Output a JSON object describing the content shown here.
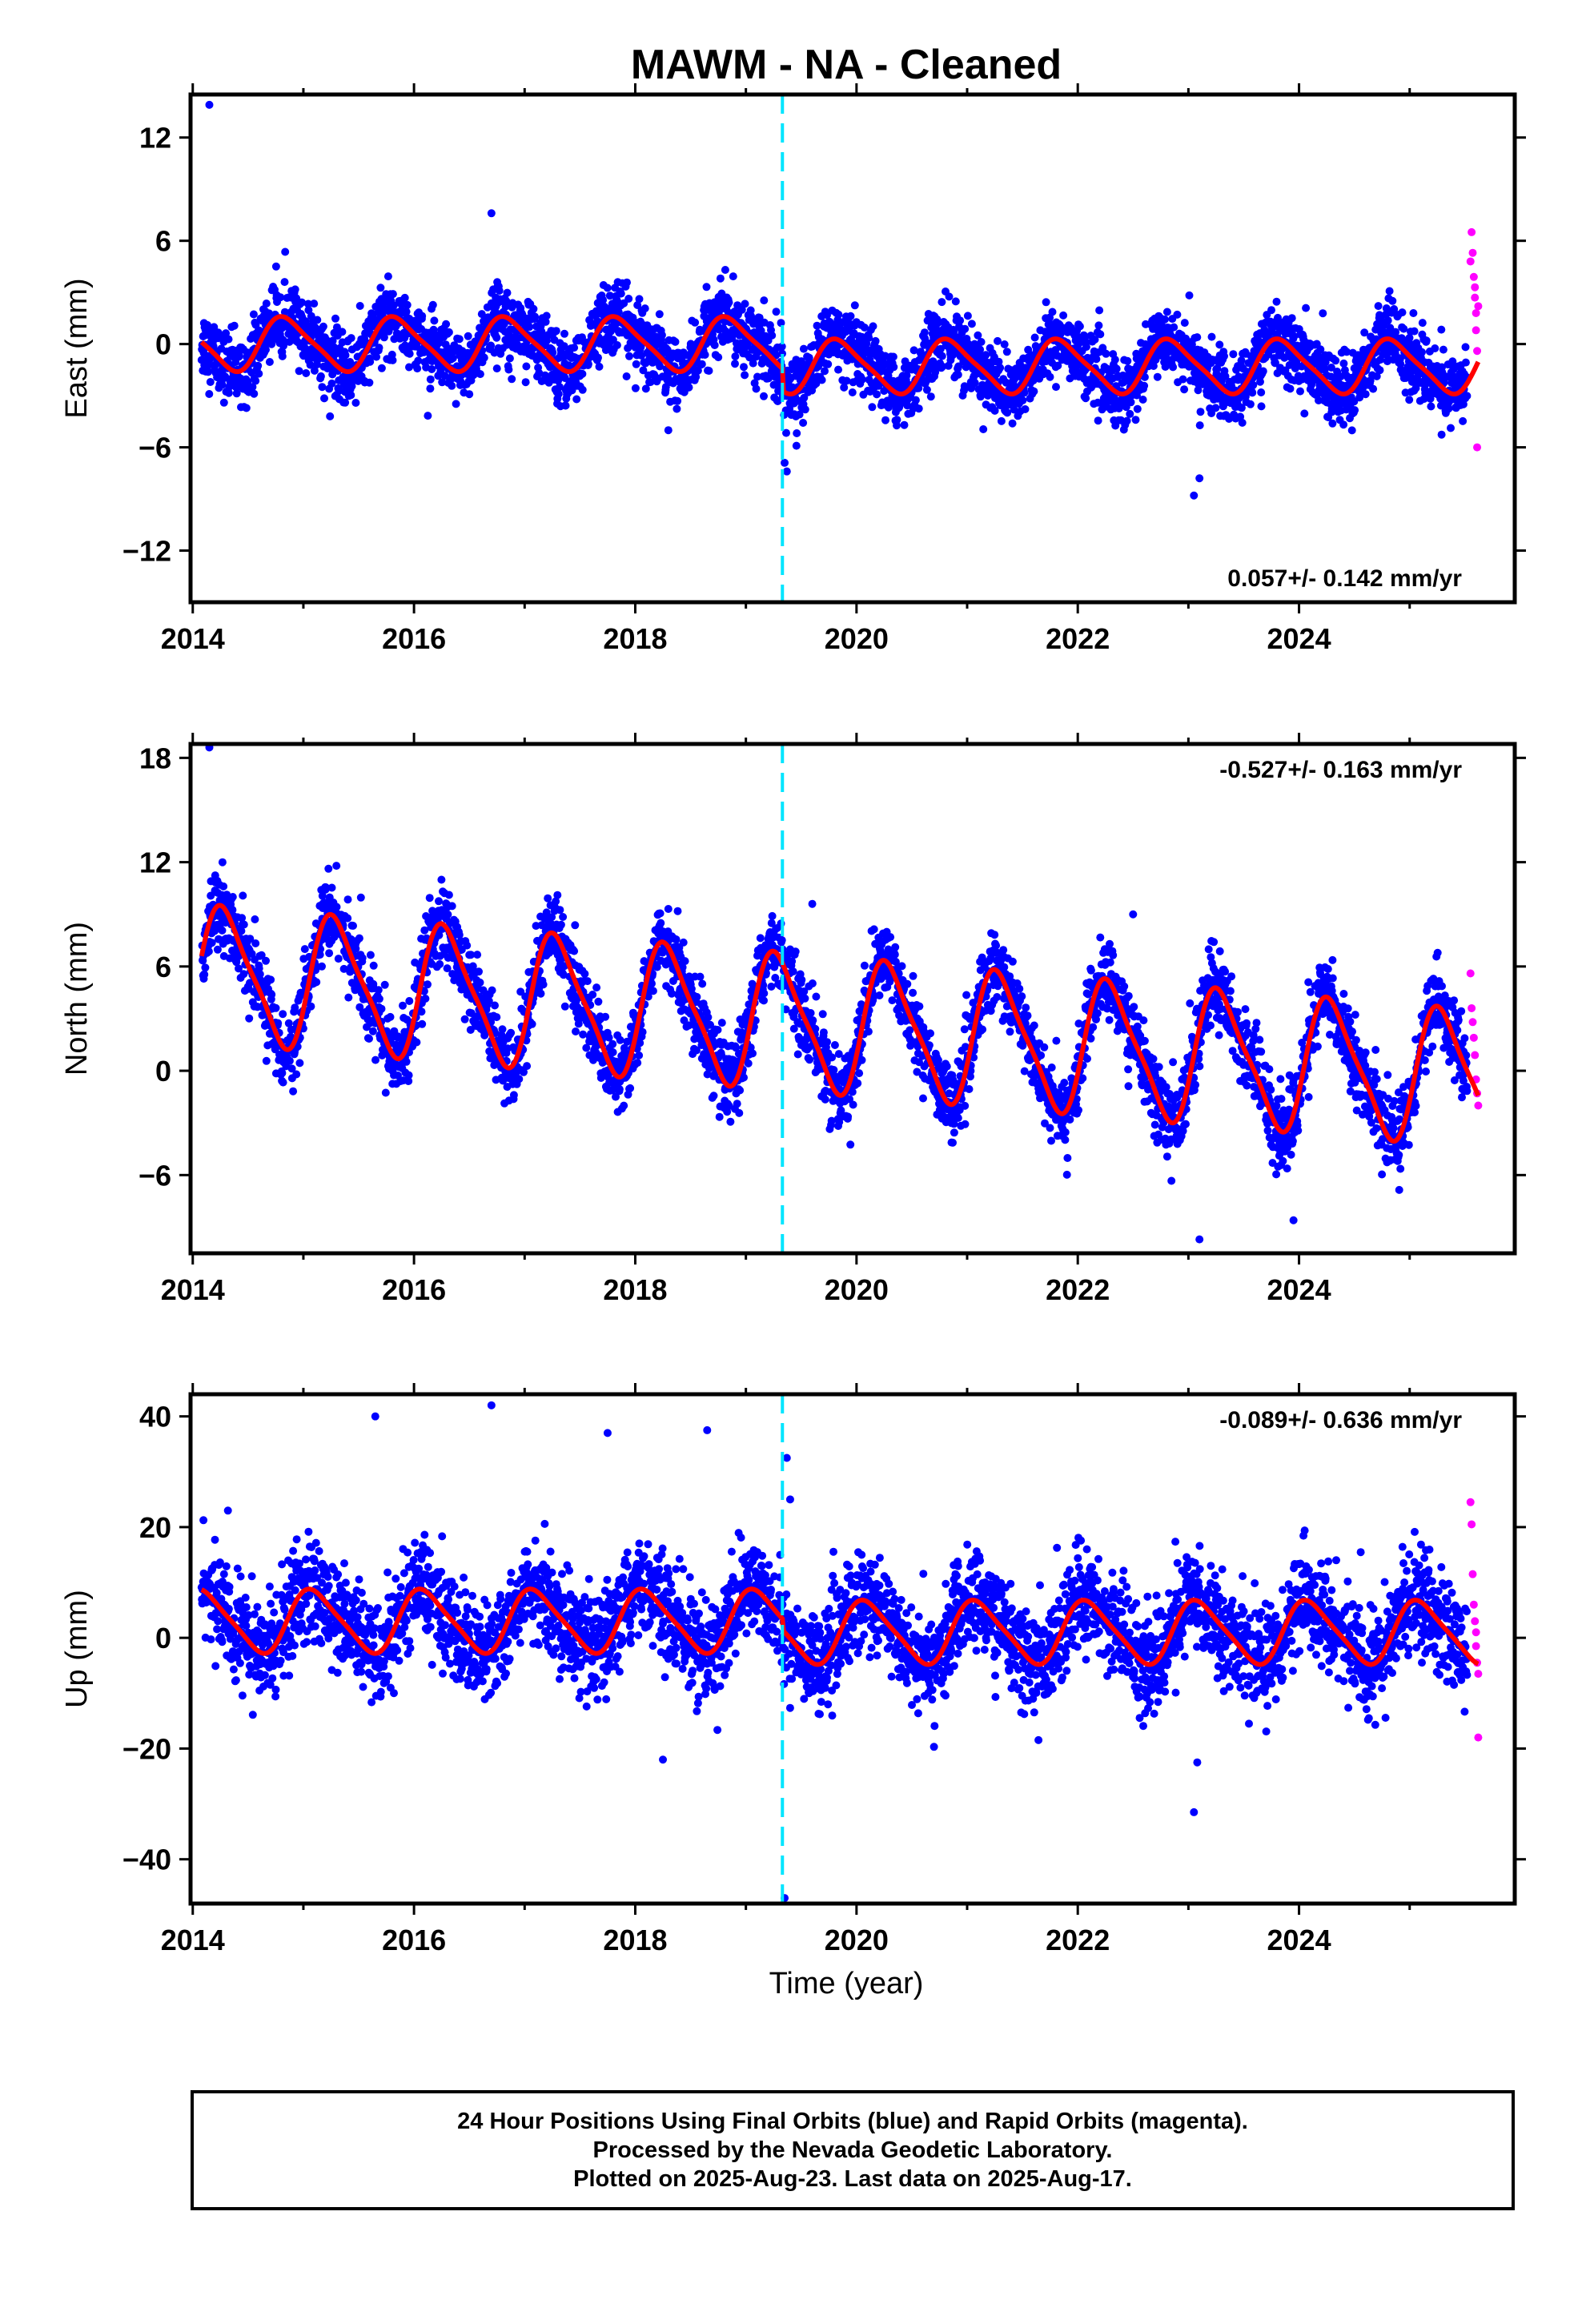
{
  "title": "MAWM  - NA - Cleaned",
  "x_axis_label": "Time (year)",
  "footer": {
    "line1": "24 Hour Positions Using Final Orbits (blue) and Rapid Orbits (magenta).",
    "line2": "Processed by the Nevada Geodetic Laboratory.",
    "line3": "Plotted on 2025-Aug-23. Last data on 2025-Aug-17."
  },
  "colors": {
    "final": "#0000ff",
    "rapid": "#ff00ff",
    "model": "#ff0000",
    "break": "#00e5ff"
  },
  "chart_data": [
    {
      "type": "scatter",
      "panel": "east",
      "ylabel": "East (mm)",
      "rate": "0.057+/- 0.142 mm/yr",
      "xlim": [
        2013.98,
        2025.95
      ],
      "ylim": [
        -15,
        14.5
      ],
      "xticks": [
        2014,
        2016,
        2018,
        2020,
        2022,
        2024
      ],
      "yticks": [
        -12,
        -6,
        0,
        6,
        12
      ],
      "yticklabels": [
        "−12",
        "−6",
        "0",
        "6",
        "12"
      ],
      "break_epoch": 2019.33,
      "series": [
        {
          "kind": "final",
          "start": 2014.08,
          "end": 2025.52,
          "base": 0.0,
          "offset_after_break": -1.3,
          "amp_annual": 1.5,
          "phase": 0.6,
          "amp_semi": 0.3,
          "noise_sd": 1.0
        },
        {
          "kind": "rapid",
          "x": [
            2025.55,
            2025.56,
            2025.57,
            2025.58,
            2025.59,
            2025.59,
            2025.6,
            2025.6,
            2025.61,
            2025.61,
            2025.62
          ],
          "y": [
            4.8,
            6.5,
            5.3,
            3.9,
            3.3,
            2.7,
            1.8,
            0.8,
            -0.4,
            -6.0,
            2.2
          ]
        },
        {
          "kind": "model",
          "start": 2014.08,
          "end": 2025.62
        }
      ],
      "outliers": {
        "x": [
          2014.15,
          2023.05,
          2023.1,
          2016.7,
          2019.35,
          2019.37
        ],
        "y": [
          13.9,
          -8.8,
          -7.8,
          7.6,
          -6.9,
          -7.4
        ]
      }
    },
    {
      "type": "scatter",
      "panel": "north",
      "ylabel": "North (mm)",
      "rate": "-0.527+/- 0.163 mm/yr",
      "xlim": [
        2013.98,
        2025.95
      ],
      "ylim": [
        -10.5,
        18.8
      ],
      "xticks": [
        2014,
        2016,
        2018,
        2020,
        2022,
        2024
      ],
      "yticks": [
        -6,
        0,
        6,
        12,
        18
      ],
      "yticklabels": [
        "−6",
        "0",
        "6",
        "12",
        "18"
      ],
      "break_epoch": 2019.33,
      "series": [
        {
          "kind": "final",
          "start": 2014.08,
          "end": 2025.52,
          "base": 2.6,
          "slope": -0.527,
          "amp_annual": 3.7,
          "phase": 0.05,
          "amp_semi": 0.8,
          "noise_sd": 1.1
        },
        {
          "kind": "rapid",
          "x": [
            2025.55,
            2025.56,
            2025.57,
            2025.58,
            2025.59,
            2025.6,
            2025.61,
            2025.62
          ],
          "y": [
            5.6,
            3.6,
            2.8,
            1.9,
            0.9,
            -0.5,
            -1.3,
            -2.0
          ]
        },
        {
          "kind": "model",
          "start": 2014.08,
          "end": 2025.62
        }
      ],
      "outliers": {
        "x": [
          2014.15,
          2023.1,
          2023.95,
          2019.6,
          2022.5
        ],
        "y": [
          18.6,
          -9.7,
          -8.6,
          9.6,
          9.0
        ]
      }
    },
    {
      "type": "scatter",
      "panel": "up",
      "ylabel": "Up (mm)",
      "rate": "-0.089+/- 0.636 mm/yr",
      "xlim": [
        2013.98,
        2025.95
      ],
      "ylim": [
        -48,
        44
      ],
      "xticks": [
        2014,
        2016,
        2018,
        2020,
        2022,
        2024
      ],
      "yticks": [
        -40,
        -20,
        0,
        20,
        40
      ],
      "yticklabels": [
        "−40",
        "−20",
        "0",
        "20",
        "40"
      ],
      "break_epoch": 2019.33,
      "series": [
        {
          "kind": "final",
          "start": 2014.08,
          "end": 2025.52,
          "base": 3.0,
          "offset_after_break": -2.0,
          "amp_annual": 5.5,
          "phase": 0.85,
          "amp_semi": 1.0,
          "noise_sd": 4.5
        },
        {
          "kind": "rapid",
          "x": [
            2025.55,
            2025.56,
            2025.57,
            2025.58,
            2025.59,
            2025.6,
            2025.6,
            2025.61,
            2025.62,
            2025.62
          ],
          "y": [
            24.5,
            20.5,
            11.5,
            6.0,
            3.0,
            1.0,
            -1.5,
            -4.5,
            -6.5,
            -18.0
          ]
        },
        {
          "kind": "model",
          "start": 2014.08,
          "end": 2025.62
        }
      ],
      "outliers": {
        "x": [
          2016.7,
          2015.65,
          2017.75,
          2018.65,
          2019.37,
          2019.4,
          2023.05,
          2023.08,
          2019.35,
          2018.25
        ],
        "y": [
          42,
          40,
          37,
          37.5,
          32.5,
          25,
          -31.5,
          -22.5,
          -47,
          -22
        ]
      }
    }
  ]
}
